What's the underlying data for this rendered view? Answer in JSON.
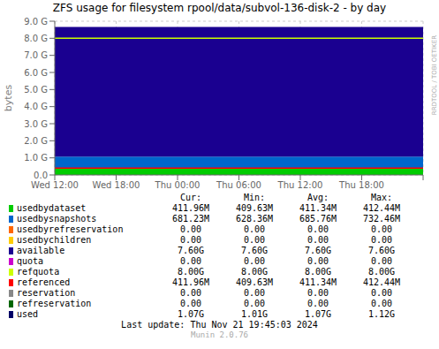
{
  "chart_data": {
    "type": "area",
    "title": "ZFS usage for filesystem rpool/data/subvol-136-disk-2 - by day",
    "ylabel": "bytes",
    "categories": [
      "Wed 12:00",
      "Wed 18:00",
      "Thu 00:00",
      "Thu 06:00",
      "Thu 12:00",
      "Thu 18:00",
      null
    ],
    "series": [
      {
        "name": "usedbydataset",
        "color": "#00cc00",
        "type": "area",
        "values": [
          431693824,
          431693824,
          431693824,
          431693824,
          431693824,
          431693824,
          431693824
        ]
      },
      {
        "name": "usedbysnapshots",
        "color": "#0066cc",
        "type": "area",
        "values": [
          714055680,
          714055680,
          714055680,
          714055680,
          714055680,
          714055680,
          714055680
        ]
      },
      {
        "name": "available",
        "color": "#1a0090",
        "type": "area",
        "values": [
          8160437248,
          8160437248,
          8160437248,
          8160437248,
          8160437248,
          8160437248,
          8160437248
        ]
      },
      {
        "name": "referenced",
        "color": "#ff0000",
        "type": "line",
        "values": [
          431693824,
          431693824,
          431693824,
          431693824,
          431693824,
          431693824,
          431693824
        ]
      },
      {
        "name": "refquota",
        "color": "#ccff00",
        "type": "line",
        "values": [
          8589934592,
          8589934592,
          8589934592,
          8589934592,
          8589934592,
          8589934592,
          8589934592
        ]
      }
    ],
    "stacked": true,
    "grid": true,
    "ylim": [
      0,
      9663676416
    ],
    "yticks": [
      {
        "value": 0,
        "label": "0.0"
      },
      {
        "value": 1073741824,
        "label": "1.0 G"
      },
      {
        "value": 2147483648,
        "label": "2.0 G"
      },
      {
        "value": 3221225472,
        "label": "3.0 G"
      },
      {
        "value": 4294967296,
        "label": "4.0 G"
      },
      {
        "value": 5368709120,
        "label": "5.0 G"
      },
      {
        "value": 6442450944,
        "label": "6.0 G"
      },
      {
        "value": 7516192768,
        "label": "7.0 G"
      },
      {
        "value": 8589934592,
        "label": "8.0 G"
      },
      {
        "value": 9663676416,
        "label": "9.0 G"
      }
    ],
    "legend_table": {
      "headers": [
        "Cur:",
        "Min:",
        "Avg:",
        "Max:"
      ],
      "rows": [
        {
          "label": "usedbydataset",
          "color": "#00cc00",
          "cur": "411.96M",
          "min": "409.63M",
          "avg": "411.34M",
          "max": "412.44M"
        },
        {
          "label": "usedbysnapshots",
          "color": "#0066cc",
          "cur": "681.23M",
          "min": "628.36M",
          "avg": "685.76M",
          "max": "732.46M"
        },
        {
          "label": "usedbyrefreservation",
          "color": "#ff6600",
          "cur": "0.00",
          "min": "0.00",
          "avg": "0.00",
          "max": "0.00"
        },
        {
          "label": "usedbychildren",
          "color": "#ffcc00",
          "cur": "0.00",
          "min": "0.00",
          "avg": "0.00",
          "max": "0.00"
        },
        {
          "label": "available",
          "color": "#1a0090",
          "cur": "7.60G",
          "min": "7.60G",
          "avg": "7.60G",
          "max": "7.60G"
        },
        {
          "label": "quota",
          "color": "#cc00cc",
          "cur": "0.00",
          "min": "0.00",
          "avg": "0.00",
          "max": "0.00"
        },
        {
          "label": "refquota",
          "color": "#ccff00",
          "cur": "8.00G",
          "min": "8.00G",
          "avg": "8.00G",
          "max": "8.00G"
        },
        {
          "label": "referenced",
          "color": "#ff0000",
          "cur": "411.96M",
          "min": "409.63M",
          "avg": "411.34M",
          "max": "412.44M"
        },
        {
          "label": "reservation",
          "color": "#888888",
          "cur": "0.00",
          "min": "0.00",
          "avg": "0.00",
          "max": "0.00"
        },
        {
          "label": "refreservation",
          "color": "#006600",
          "cur": "0.00",
          "min": "0.00",
          "avg": "0.00",
          "max": "0.00"
        },
        {
          "label": "used",
          "color": "#000066",
          "cur": "1.07G",
          "min": "1.01G",
          "avg": "1.07G",
          "max": "1.12G"
        }
      ]
    },
    "annotations": [
      "RRDTOOL / TOBI OETIKER",
      "Last update: Thu Nov 21 19:45:03 2024",
      "Munin 2.0.76"
    ]
  }
}
